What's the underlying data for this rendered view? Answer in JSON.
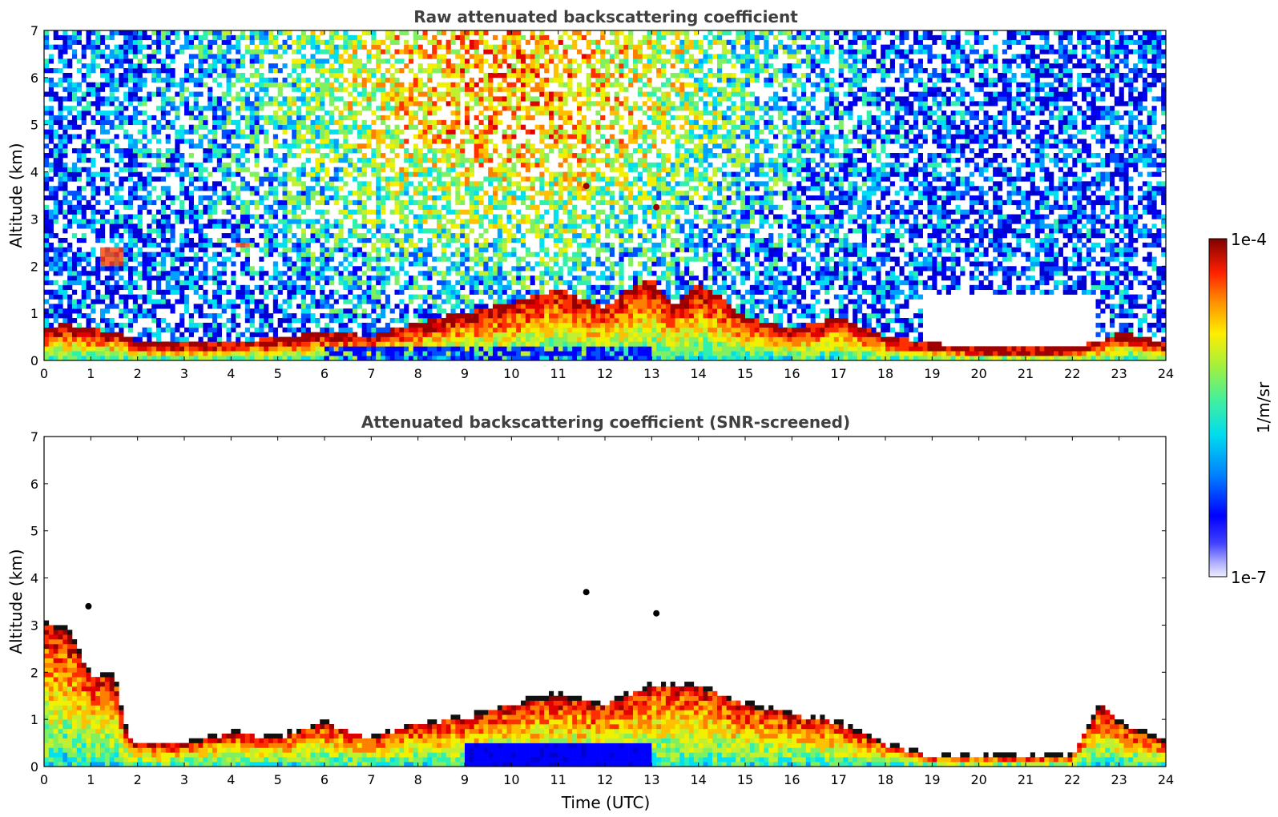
{
  "chart_data": [
    {
      "type": "heatmap",
      "title": "Raw attenuated backscattering coefficient",
      "xlabel": "",
      "ylabel": "Altitude (km)",
      "xlim": [
        0,
        24
      ],
      "ylim": [
        0,
        7
      ],
      "xticks": [
        "0",
        "1",
        "2",
        "3",
        "4",
        "5",
        "6",
        "7",
        "8",
        "9",
        "10",
        "11",
        "12",
        "13",
        "14",
        "15",
        "16",
        "17",
        "18",
        "19",
        "20",
        "21",
        "22",
        "23",
        "24"
      ],
      "yticks": [
        "0",
        "1",
        "2",
        "3",
        "4",
        "5",
        "6",
        "7"
      ],
      "colormap": "jet",
      "colorscale": "log",
      "grid": false,
      "layers": {
        "boundary_layer_top_km": [
          [
            0,
            0.6
          ],
          [
            0.5,
            0.65
          ],
          [
            1,
            0.55
          ],
          [
            1.5,
            0.5
          ],
          [
            2,
            0.3
          ],
          [
            3,
            0.25
          ],
          [
            4,
            0.3
          ],
          [
            5,
            0.35
          ],
          [
            6,
            0.5
          ],
          [
            7,
            0.4
          ],
          [
            8,
            0.7
          ],
          [
            9,
            0.9
          ],
          [
            10,
            1.1
          ],
          [
            11,
            1.4
          ],
          [
            11.5,
            1.2
          ],
          [
            12,
            1.0
          ],
          [
            12.5,
            1.4
          ],
          [
            13,
            1.6
          ],
          [
            13.5,
            1.0
          ],
          [
            14,
            1.5
          ],
          [
            14.5,
            1.2
          ],
          [
            15,
            0.8
          ],
          [
            16,
            0.55
          ],
          [
            17,
            0.8
          ],
          [
            18,
            0.4
          ],
          [
            19,
            0.25
          ],
          [
            20,
            0.15
          ],
          [
            21,
            0.15
          ],
          [
            22,
            0.15
          ],
          [
            22.6,
            0.3
          ],
          [
            23,
            0.5
          ],
          [
            24,
            0.25
          ]
        ],
        "near_field_aerosol_km": [
          [
            0,
            1.4
          ],
          [
            0.5,
            1.2
          ],
          [
            1,
            1.0
          ],
          [
            1.5,
            0.8
          ],
          [
            1.7,
            0.6
          ]
        ],
        "elevated_layer_km": [
          {
            "x": [
              1.2,
              1.7
            ],
            "alt": [
              2.0,
              2.4
            ]
          },
          {
            "x": [
              4.1,
              4.4
            ],
            "alt": [
              2.4,
              2.5
            ]
          }
        ],
        "isolated_features_km": [
          {
            "x": 11.6,
            "alt": 3.7
          },
          {
            "x": 13.1,
            "alt": 3.25
          }
        ],
        "high_noise_region_hours": [
          6,
          13
        ]
      }
    },
    {
      "type": "heatmap",
      "title": "Attenuated backscattering coefficient (SNR-screened)",
      "xlabel": "Time (UTC)",
      "ylabel": "Altitude (km)",
      "xlim": [
        0,
        24
      ],
      "ylim": [
        0,
        7
      ],
      "xticks": [
        "0",
        "1",
        "2",
        "3",
        "4",
        "5",
        "6",
        "7",
        "8",
        "9",
        "10",
        "11",
        "12",
        "13",
        "14",
        "15",
        "16",
        "17",
        "18",
        "19",
        "20",
        "21",
        "22",
        "23",
        "24"
      ],
      "yticks": [
        "0",
        "1",
        "2",
        "3",
        "4",
        "5",
        "6",
        "7"
      ],
      "colormap": "jet",
      "colorscale": "log",
      "grid": false,
      "layers": {
        "screened_aerosol_top_km": [
          [
            0,
            3.0
          ],
          [
            0.5,
            2.9
          ],
          [
            1,
            1.9
          ],
          [
            1.5,
            1.9
          ],
          [
            1.8,
            0.6
          ],
          [
            2,
            0.45
          ],
          [
            3,
            0.45
          ],
          [
            4,
            0.7
          ],
          [
            5,
            0.6
          ],
          [
            6,
            0.9
          ],
          [
            7,
            0.6
          ],
          [
            8,
            0.9
          ],
          [
            9,
            1.0
          ],
          [
            10,
            1.3
          ],
          [
            11,
            1.5
          ],
          [
            12,
            1.3
          ],
          [
            13,
            1.7
          ],
          [
            14,
            1.7
          ],
          [
            15,
            1.3
          ],
          [
            16,
            1.1
          ],
          [
            17,
            0.9
          ],
          [
            18,
            0.45
          ],
          [
            19,
            0.2
          ],
          [
            20,
            0.18
          ],
          [
            21,
            0.18
          ],
          [
            22,
            0.2
          ],
          [
            22.6,
            1.3
          ],
          [
            23,
            0.9
          ],
          [
            24,
            0.5
          ]
        ],
        "blue_low_region_hours": [
          9,
          13
        ],
        "isolated_features_km": [
          {
            "x": 11.6,
            "alt": 3.7
          },
          {
            "x": 13.1,
            "alt": 3.25
          },
          {
            "x": 0.95,
            "alt": 3.4
          }
        ]
      }
    }
  ],
  "colorbar": {
    "label": "1/m/sr",
    "max_label": "1e-4",
    "min_label": "1e-7",
    "min": 1e-07,
    "max": 0.0001,
    "scale": "log"
  }
}
